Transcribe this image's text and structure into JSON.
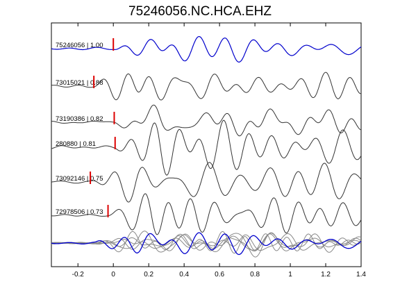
{
  "chart_data": {
    "type": "line",
    "title": "75246056.NC.HCA.EHZ",
    "xlabel": "",
    "ylabel": "",
    "xlim": [
      -0.35,
      1.4
    ],
    "xticks": [
      -0.2,
      0,
      0.2,
      0.4,
      0.6,
      0.8,
      1,
      1.2,
      1.4
    ],
    "xtick_labels": [
      "-0.2",
      "0",
      "0.2",
      "0.4",
      "0.6",
      "0.8",
      "1",
      "1.2",
      "1.4"
    ],
    "grid": false,
    "traces": [
      {
        "label": "75246056 | 1.00",
        "event": "75246056",
        "cc": 1.0,
        "pick_time": 0.0,
        "color": "#0000cc"
      },
      {
        "label": "73015021 | 0.88",
        "event": "73015021",
        "cc": 0.88,
        "pick_time": -0.11,
        "color": "#333333"
      },
      {
        "label": "73190386 | 0.82",
        "event": "73190386",
        "cc": 0.82,
        "pick_time": 0.005,
        "color": "#333333"
      },
      {
        "label": "280880 | 0.81",
        "event": "280880",
        "cc": 0.81,
        "pick_time": 0.01,
        "color": "#333333"
      },
      {
        "label": "73092146 | 0.75",
        "event": "73092146",
        "cc": 0.75,
        "pick_time": -0.13,
        "color": "#333333"
      },
      {
        "label": "72978506 | 0.73",
        "event": "72978506",
        "cc": 0.73,
        "pick_time": -0.03,
        "color": "#333333"
      }
    ],
    "stack": {
      "label": "",
      "reference_color": "#0000cc",
      "others_color": "#888888"
    },
    "pick_color": "#dd0000"
  }
}
